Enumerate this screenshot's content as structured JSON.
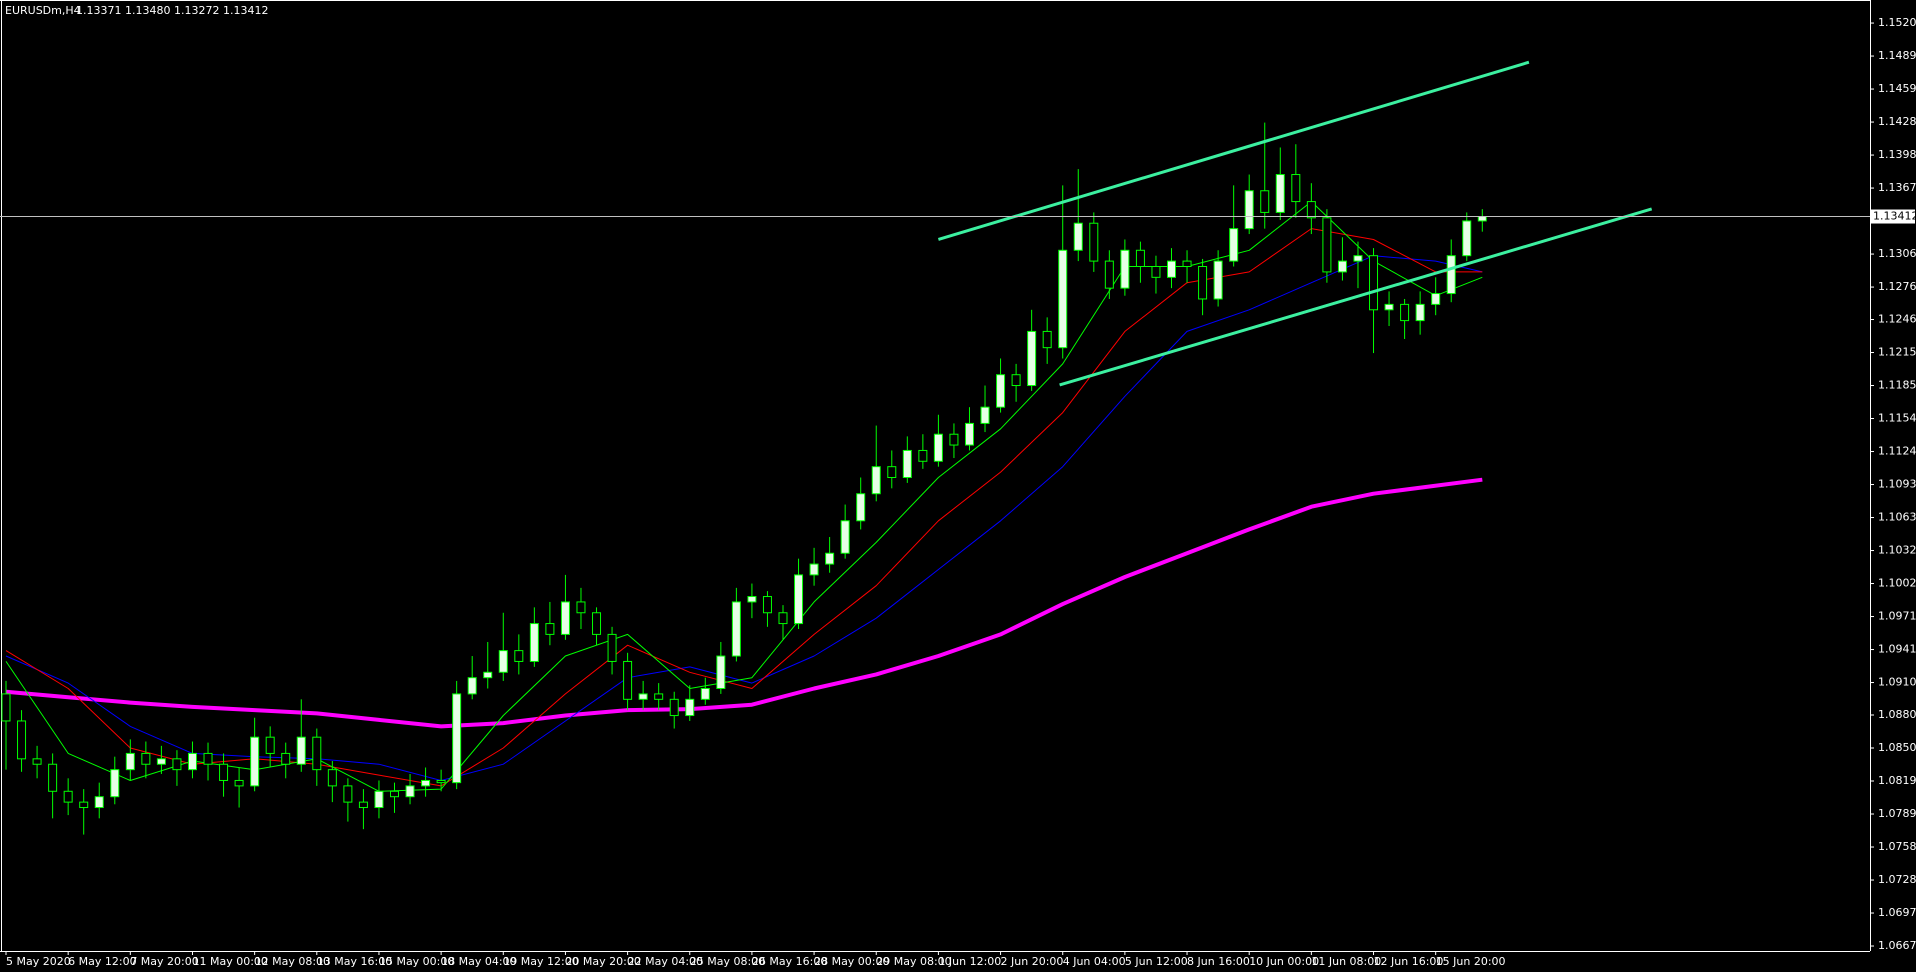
{
  "chart_data": {
    "type": "candlestick",
    "title": "EURUSDm,H4",
    "subtitle": "1.13371 1.13480 1.13272 1.13412",
    "background": "#000000",
    "foreground": "#ffffff",
    "candle_color": "#00ff00",
    "up_fill": "#e6ffe6",
    "down_fill": "#000000",
    "open": [
      1.09,
      1.0875,
      1.084,
      1.0835,
      1.081,
      1.08,
      1.0795,
      1.0805,
      1.083,
      1.0845,
      1.0835,
      1.084,
      1.083,
      1.0845,
      1.0835,
      1.082,
      1.0815,
      1.086,
      1.0845,
      1.0835,
      1.086,
      1.083,
      1.0815,
      1.08,
      1.0795,
      1.081,
      1.0805,
      1.0815,
      1.082,
      1.0818,
      1.09,
      1.0915,
      1.092,
      1.094,
      1.093,
      1.0965,
      1.0955,
      1.0985,
      1.0975,
      1.0955,
      1.093,
      1.0895,
      1.09,
      1.0895,
      1.088,
      1.0895,
      1.0905,
      1.0935,
      1.0985,
      1.099,
      1.0975,
      1.0965,
      1.101,
      1.102,
      1.103,
      1.106,
      1.1085,
      1.111,
      1.11,
      1.1125,
      1.1115,
      1.114,
      1.113,
      1.115,
      1.1165,
      1.1195,
      1.1185,
      1.1235,
      1.122,
      1.131,
      1.1335,
      1.13,
      1.1275,
      1.131,
      1.1295,
      1.1285,
      1.13,
      1.1295,
      1.1265,
      1.13,
      1.133,
      1.1365,
      1.1345,
      1.138,
      1.1355,
      1.134,
      1.129,
      1.13,
      1.1305,
      1.1255,
      1.126,
      1.1245,
      1.126,
      1.127,
      1.1305,
      1.13371
    ],
    "high": [
      1.0912,
      1.0885,
      1.0852,
      1.0845,
      1.0822,
      1.0812,
      1.0818,
      1.0842,
      1.0858,
      1.0856,
      1.0852,
      1.0848,
      1.0856,
      1.0855,
      1.0845,
      1.0832,
      1.0878,
      1.087,
      1.0855,
      1.0895,
      1.0868,
      1.0838,
      1.0822,
      1.0812,
      1.082,
      1.0818,
      1.0826,
      1.0832,
      1.083,
      1.0912,
      1.0935,
      1.0948,
      1.0975,
      1.0955,
      1.098,
      1.0985,
      1.101,
      1.0998,
      1.098,
      1.0962,
      1.0938,
      1.0912,
      1.091,
      1.0902,
      1.0908,
      1.0915,
      1.0948,
      1.0998,
      1.1002,
      1.0995,
      1.0982,
      1.1025,
      1.1035,
      1.1045,
      1.1075,
      1.11,
      1.1148,
      1.1125,
      1.1138,
      1.114,
      1.1158,
      1.115,
      1.1165,
      1.1185,
      1.121,
      1.1205,
      1.1255,
      1.1248,
      1.137,
      1.1385,
      1.1345,
      1.131,
      1.132,
      1.1318,
      1.1305,
      1.1312,
      1.131,
      1.1302,
      1.131,
      1.137,
      1.138,
      1.1428,
      1.1405,
      1.1408,
      1.1372,
      1.1348,
      1.1322,
      1.1318,
      1.1312,
      1.1272,
      1.1265,
      1.1272,
      1.1285,
      1.132,
      1.1345,
      1.1348
    ],
    "low": [
      1.083,
      1.0828,
      1.0822,
      1.0785,
      1.0788,
      1.077,
      1.0785,
      1.0798,
      1.082,
      1.0822,
      1.0826,
      1.0815,
      1.0822,
      1.082,
      1.0805,
      1.0795,
      1.081,
      1.0832,
      1.0822,
      1.0828,
      1.0815,
      1.08,
      1.0782,
      1.0775,
      1.0785,
      1.079,
      1.0798,
      1.0805,
      1.081,
      1.0812,
      1.0895,
      1.0905,
      1.0912,
      1.0918,
      1.0925,
      1.0945,
      1.095,
      1.096,
      1.0945,
      1.0918,
      1.0885,
      1.0885,
      1.0885,
      1.0868,
      1.0875,
      1.089,
      1.09,
      1.093,
      1.097,
      1.0962,
      1.095,
      1.096,
      1.1,
      1.1012,
      1.1025,
      1.1052,
      1.1078,
      1.109,
      1.1095,
      1.1108,
      1.111,
      1.1118,
      1.1125,
      1.1142,
      1.116,
      1.117,
      1.118,
      1.1205,
      1.121,
      1.13,
      1.129,
      1.1265,
      1.1268,
      1.128,
      1.127,
      1.1275,
      1.128,
      1.125,
      1.1258,
      1.1295,
      1.1325,
      1.133,
      1.1338,
      1.134,
      1.1325,
      1.128,
      1.1282,
      1.1275,
      1.1215,
      1.124,
      1.1228,
      1.1232,
      1.125,
      1.1262,
      1.13,
      1.13272
    ],
    "close": [
      1.0875,
      1.084,
      1.0835,
      1.081,
      1.08,
      1.0795,
      1.0805,
      1.083,
      1.0845,
      1.0835,
      1.084,
      1.083,
      1.0845,
      1.0835,
      1.082,
      1.0815,
      1.086,
      1.0845,
      1.0835,
      1.086,
      1.083,
      1.0815,
      1.08,
      1.0795,
      1.081,
      1.0805,
      1.0815,
      1.082,
      1.0818,
      1.09,
      1.0915,
      1.092,
      1.094,
      1.093,
      1.0965,
      1.0955,
      1.0985,
      1.0975,
      1.0955,
      1.093,
      1.0895,
      1.09,
      1.0895,
      1.088,
      1.0895,
      1.0905,
      1.0935,
      1.0985,
      1.099,
      1.0975,
      1.0965,
      1.101,
      1.102,
      1.103,
      1.106,
      1.1085,
      1.111,
      1.11,
      1.1125,
      1.1115,
      1.114,
      1.113,
      1.115,
      1.1165,
      1.1195,
      1.1185,
      1.1235,
      1.122,
      1.131,
      1.1335,
      1.13,
      1.1275,
      1.131,
      1.1295,
      1.1285,
      1.13,
      1.1295,
      1.1265,
      1.13,
      1.133,
      1.1365,
      1.1345,
      1.138,
      1.1355,
      1.134,
      1.129,
      1.13,
      1.1305,
      1.1255,
      1.126,
      1.1245,
      1.126,
      1.127,
      1.1305,
      1.13371,
      1.13412
    ],
    "series": [
      {
        "color": "#ff00ff",
        "width": 4,
        "x": [
          0,
          4,
          8,
          12,
          16,
          20,
          24,
          28,
          32,
          36,
          40,
          44,
          48,
          52,
          56,
          60,
          64,
          68,
          72,
          76,
          80,
          84,
          88,
          95
        ],
        "values": [
          1.0902,
          1.0897,
          1.0892,
          1.0888,
          1.0885,
          1.0882,
          1.0876,
          1.087,
          1.0873,
          1.088,
          1.0885,
          1.0886,
          1.089,
          1.0905,
          1.0918,
          1.0935,
          1.0955,
          1.0983,
          1.1008,
          1.103,
          1.1052,
          1.1073,
          1.1085,
          1.1098
        ]
      },
      {
        "color": "#0000ff",
        "width": 1,
        "x": [
          0,
          4,
          8,
          12,
          16,
          20,
          24,
          28,
          32,
          36,
          40,
          44,
          48,
          52,
          56,
          60,
          64,
          68,
          72,
          76,
          80,
          84,
          88,
          92,
          95
        ],
        "values": [
          1.0935,
          1.091,
          1.087,
          1.0845,
          1.0842,
          1.084,
          1.0835,
          1.082,
          1.0835,
          1.0875,
          1.0915,
          1.0925,
          1.091,
          1.0935,
          1.097,
          1.1015,
          1.106,
          1.111,
          1.1175,
          1.1235,
          1.1255,
          1.128,
          1.1305,
          1.13,
          1.129
        ]
      },
      {
        "color": "#ff0000",
        "width": 1,
        "x": [
          0,
          4,
          8,
          12,
          16,
          20,
          24,
          28,
          32,
          36,
          40,
          44,
          48,
          52,
          56,
          60,
          64,
          68,
          72,
          76,
          80,
          84,
          88,
          92,
          95
        ],
        "values": [
          1.094,
          1.0905,
          1.085,
          1.0835,
          1.084,
          1.0835,
          1.0825,
          1.0815,
          1.085,
          1.09,
          1.0945,
          1.092,
          1.0905,
          1.0955,
          1.1,
          1.106,
          1.1105,
          1.116,
          1.1235,
          1.128,
          1.129,
          1.133,
          1.132,
          1.129,
          1.129
        ]
      },
      {
        "color": "#00ff00",
        "width": 1,
        "x": [
          0,
          4,
          8,
          12,
          16,
          20,
          24,
          28,
          32,
          36,
          40,
          44,
          48,
          52,
          56,
          60,
          64,
          68,
          72,
          76,
          80,
          84,
          88,
          92,
          95
        ],
        "values": [
          1.093,
          1.0845,
          1.082,
          1.0838,
          1.083,
          1.084,
          1.081,
          1.0812,
          1.088,
          1.0935,
          1.0955,
          1.0905,
          1.0915,
          1.0985,
          1.104,
          1.11,
          1.1145,
          1.1205,
          1.1295,
          1.1295,
          1.131,
          1.1355,
          1.13,
          1.1268,
          1.1285
        ]
      }
    ],
    "trendlines": [
      {
        "color": "#3cf0a0",
        "points": [
          [
            60.0,
            1.132
          ],
          [
            98.0,
            1.14838
          ]
        ]
      },
      {
        "color": "#3cf0a0",
        "points": [
          [
            67.8,
            1.11855
          ],
          [
            105.9,
            1.13482
          ]
        ]
      }
    ],
    "current_price": 1.13412,
    "ylim": [
      1.06624,
      1.15413
    ],
    "yticks": [
      {
        "value": 1.152,
        "label": "1.15200"
      },
      1.14895,
      {
        "value": 1.1459,
        "label": "1.14590"
      },
      1.14285,
      {
        "value": 1.1398,
        "label": "1.13980"
      },
      1.13675,
      1.13065,
      {
        "value": 1.1276,
        "label": "1.12760"
      },
      {
        "value": 1.1246,
        "label": "1.12460"
      },
      1.12155,
      {
        "value": 1.1185,
        "label": "1.11850"
      },
      1.11545,
      {
        "value": 1.1124,
        "label": "1.11240"
      },
      1.10935,
      {
        "value": 1.1063,
        "label": "1.10630"
      },
      1.10325,
      {
        "value": 1.1002,
        "label": "1.10020"
      },
      1.09715,
      {
        "value": 1.0941,
        "label": "1.09410"
      },
      1.09105,
      1.08805,
      {
        "value": 1.085,
        "label": "1.08500"
      },
      1.08195,
      {
        "value": 1.0789,
        "label": "1.07890"
      },
      1.07585,
      {
        "value": 1.0728,
        "label": "1.07280"
      },
      1.06975,
      {
        "value": 1.0667,
        "label": "1.06670"
      }
    ],
    "xticks": [
      {
        "value": 0,
        "label": "5 May 2020"
      },
      {
        "value": 4,
        "label": "6 May 12:00"
      },
      {
        "value": 8,
        "label": "7 May 20:00"
      },
      {
        "value": 12,
        "label": "11 May 00:00"
      },
      {
        "value": 16,
        "label": "12 May 08:00"
      },
      {
        "value": 20,
        "label": "13 May 16:00"
      },
      {
        "value": 24,
        "label": "15 May 00:00"
      },
      {
        "value": 28,
        "label": "18 May 04:00"
      },
      {
        "value": 32,
        "label": "19 May 12:00"
      },
      {
        "value": 36,
        "label": "20 May 20:00"
      },
      {
        "value": 40,
        "label": "22 May 04:00"
      },
      {
        "value": 44,
        "label": "25 May 08:00"
      },
      {
        "value": 48,
        "label": "26 May 16:00"
      },
      {
        "value": 52,
        "label": "28 May 00:00"
      },
      {
        "value": 56,
        "label": "29 May 08:00"
      },
      {
        "value": 60,
        "label": "1 Jun 12:00"
      },
      {
        "value": 64,
        "label": "2 Jun 20:00"
      },
      {
        "value": 68,
        "label": "4 Jun 04:00"
      },
      {
        "value": 72,
        "label": "5 Jun 12:00"
      },
      {
        "value": 76,
        "label": "8 Jun 16:00"
      },
      {
        "value": 80,
        "label": "10 Jun 00:00"
      },
      {
        "value": 84,
        "label": "11 Jun 08:00"
      },
      {
        "value": 88,
        "label": "12 Jun 16:00"
      },
      {
        "value": 92,
        "label": "15 Jun 20:00"
      }
    ]
  }
}
